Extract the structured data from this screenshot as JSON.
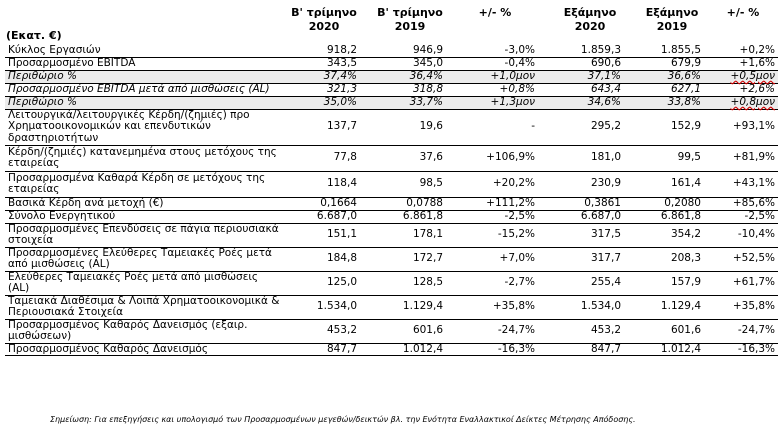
{
  "unit_label": "(Εκατ. €)",
  "headers": [
    {
      "line1": "Β' τρίμηνο",
      "line2": "2020"
    },
    {
      "line1": "Β' τρίμηνο",
      "line2": "2019"
    },
    {
      "line1": "+/- %",
      "line2": ""
    },
    {
      "line1": "Εξάμηνο",
      "line2": "2020"
    },
    {
      "line1": "Εξάμηνο",
      "line2": "2019"
    },
    {
      "line1": "+/- %",
      "line2": ""
    }
  ],
  "rows": [
    {
      "label": "Κύκλος Εργασιών",
      "values": [
        "918,2",
        "946,9",
        "-3,0%",
        "1.859,3",
        "1.855,5",
        "+0,2%"
      ],
      "italic": false,
      "shaded": false
    },
    {
      "label": "Προσαρμοσμένο EBITDA",
      "values": [
        "343,5",
        "345,0",
        "-0,4%",
        "690,6",
        "679,9",
        "+1,6%"
      ],
      "italic": false,
      "shaded": false
    },
    {
      "label": "Περιθώριο %",
      "values": [
        "37,4%",
        "36,4%",
        "+1,0μον",
        "37,1%",
        "36,6%",
        "+0,5μον"
      ],
      "italic": true,
      "shaded": true
    },
    {
      "label": "Προσαρμοσμένο EBITDA μετά από μισθώσεις (AL)",
      "values": [
        "321,3",
        "318,8",
        "+0,8%",
        "643,4",
        "627,1",
        "+2,6%"
      ],
      "italic": true,
      "shaded": false
    },
    {
      "label": "Περιθώριο %",
      "values": [
        "35,0%",
        "33,7%",
        "+1,3μον",
        "34,6%",
        "33,8%",
        "+0,8μον"
      ],
      "italic": true,
      "shaded": true
    },
    {
      "label": "Λειτουργικά/λειτουργικές Κέρδη/(ζημιές) προ Χρηματοοικονομικών και επενδυτικών δραστηριοτήτων",
      "values": [
        "137,7",
        "19,6",
        "-",
        "295,2",
        "152,9",
        "+93,1%"
      ],
      "italic": false,
      "shaded": false
    },
    {
      "label": "Κέρδη/(ζημιές) κατανεμημένα στους μετόχους της εταιρείας",
      "values": [
        "77,8",
        "37,6",
        "+106,9%",
        "181,0",
        "99,5",
        "+81,9%"
      ],
      "italic": false,
      "shaded": false
    },
    {
      "label": "Προσαρμοσμένα Καθαρά Κέρδη σε μετόχους της εταιρείας",
      "values": [
        "118,4",
        "98,5",
        "+20,2%",
        "230,9",
        "161,4",
        "+43,1%"
      ],
      "italic": false,
      "shaded": false
    },
    {
      "label": "Βασικά Κέρδη ανά μετοχή (€)",
      "values": [
        "0,1664",
        "0,0788",
        "+111,2%",
        "0,3861",
        "0,2080",
        "+85,6%"
      ],
      "italic": false,
      "shaded": false
    },
    {
      "label": "Σύνολο Ενεργητικού",
      "values": [
        "6.687,0",
        "6.861,8",
        "-2,5%",
        "6.687,0",
        "6.861,8",
        "-2,5%"
      ],
      "italic": false,
      "shaded": false
    },
    {
      "label": "Προσαρμοσμένες Επενδύσεις σε πάγια περιουσιακά στοιχεία",
      "values": [
        "151,1",
        "178,1",
        "-15,2%",
        "317,5",
        "354,2",
        "-10,4%"
      ],
      "italic": false,
      "shaded": false
    },
    {
      "label": "Προσαρμοσμένες  Ελεύθερες Ταμειακές Ροές μετά από μισθώσεις (AL)",
      "values": [
        "184,8",
        "172,7",
        "+7,0%",
        "317,7",
        "208,3",
        "+52,5%"
      ],
      "italic": false,
      "shaded": false
    },
    {
      "label": "Ελεύθερες Ταμειακές Ροές μετά από μισθώσεις (AL)",
      "values": [
        "125,0",
        "128,5",
        "-2,7%",
        "255,4",
        "157,9",
        "+61,7%"
      ],
      "italic": false,
      "shaded": false
    },
    {
      "label": "Ταμειακά Διαθέσιμα & Λοιπά Χρηματοοικονομικά & Περιουσιακά Στοιχεία",
      "values": [
        "1.534,0",
        "1.129,4",
        "+35,8%",
        "1.534,0",
        "1.129,4",
        "+35,8%"
      ],
      "italic": false,
      "shaded": false
    },
    {
      "label": "Προσαρμοσμένος Καθαρός Δανεισμός (εξαιρ. μισθώσεων)",
      "values": [
        "453,2",
        "601,6",
        "-24,7%",
        "453,2",
        "601,6",
        "-24,7%"
      ],
      "italic": false,
      "shaded": false
    },
    {
      "label": "Προσαρμοσμένος Καθαρός Δανεισμός",
      "values": [
        "847,7",
        "1.012,4",
        "-16,3%",
        "847,7",
        "1.012,4",
        "-16,3%"
      ],
      "italic": false,
      "shaded": false
    }
  ],
  "footnote": "Σημείωση: Για επεξηγήσεις και υπολογισμό των Προσαρμοσμένων μεγεθών/δεικτών βλ. την Ενότητα Εναλλακτικοί Δείκτες Μέτρησης Απόδοσης."
}
